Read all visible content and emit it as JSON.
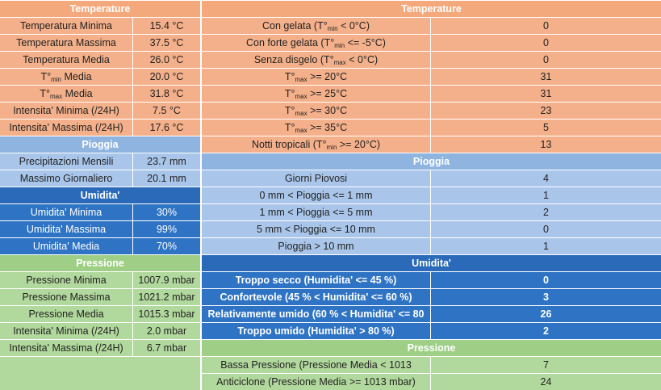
{
  "left": {
    "temperature": {
      "title": "Temperature",
      "rows": [
        {
          "label": "Temperatura Minima",
          "value": "15.4 °C"
        },
        {
          "label": "Temperatura Massima",
          "value": "37.5 °C"
        },
        {
          "label": "Temperatura Media",
          "value": "26.0 °C"
        },
        {
          "label_pre": "T°",
          "label_sub": "min",
          "label_post": " Media",
          "value": "20.0 °C"
        },
        {
          "label_pre": "T°",
          "label_sub": "max",
          "label_post": " Media",
          "value": "31.8 °C"
        },
        {
          "label": "Intensita' Minima (/24H)",
          "value": "7.5 °C"
        },
        {
          "label": "Intensita' Massima (/24H)",
          "value": "17.6 °C"
        }
      ]
    },
    "pioggia": {
      "title": "Pioggia",
      "rows": [
        {
          "label": "Precipitazioni Mensili",
          "value": "23.7 mm"
        },
        {
          "label": "Massimo Giornaliero",
          "value": "20.1 mm"
        }
      ]
    },
    "umidita": {
      "title": "Umidita'",
      "rows": [
        {
          "label": "Umidita' Minima",
          "value": "30%"
        },
        {
          "label": "Umidita' Massima",
          "value": "99%"
        },
        {
          "label": "Umidita' Media",
          "value": "70%"
        }
      ]
    },
    "pressione": {
      "title": "Pressione",
      "rows": [
        {
          "label": "Pressione Minima",
          "value": "1007.9 mbar"
        },
        {
          "label": "Pressione Massima",
          "value": "1021.2 mbar"
        },
        {
          "label": "Pressione Media",
          "value": "1015.3 mbar"
        },
        {
          "label": "Intensita' Minima (/24H)",
          "value": "2.0 mbar"
        },
        {
          "label": "Intensita' Massima (/24H)",
          "value": "6.7 mbar"
        }
      ]
    }
  },
  "right": {
    "temperature": {
      "title": "Temperature",
      "rows": [
        {
          "label_pre": "Con gelata (T°",
          "label_sub": "min",
          "label_post": " < 0°C)",
          "value": "0"
        },
        {
          "label_pre": "Con forte gelata (T°",
          "label_sub": "min",
          "label_post": " <= -5°C)",
          "value": "0"
        },
        {
          "label_pre": "Senza disgelo (T°",
          "label_sub": "max",
          "label_post": " < 0°C)",
          "value": "0"
        },
        {
          "label_pre": "T°",
          "label_sub": "max",
          "label_post": " >= 20°C",
          "value": "31"
        },
        {
          "label_pre": "T°",
          "label_sub": "max",
          "label_post": " >= 25°C",
          "value": "31"
        },
        {
          "label_pre": "T°",
          "label_sub": "max",
          "label_post": " >= 30°C",
          "value": "23"
        },
        {
          "label_pre": "T°",
          "label_sub": "max",
          "label_post": " >= 35°C",
          "value": "5"
        },
        {
          "label_pre": "Notti tropicali (T°",
          "label_sub": "min",
          "label_post": " >= 20°C)",
          "value": "13"
        }
      ]
    },
    "pioggia": {
      "title": "Pioggia",
      "rows": [
        {
          "label": "Giorni Piovosi",
          "value": "4"
        },
        {
          "label": "0 mm < Pioggia <= 1 mm",
          "value": "1"
        },
        {
          "label": "1 mm < Pioggia <= 5 mm",
          "value": "2"
        },
        {
          "label": "5 mm < Pioggia <= 10 mm",
          "value": "0"
        },
        {
          "label": "Pioggia > 10 mm",
          "value": "1"
        }
      ]
    },
    "umidita": {
      "title": "Umidita'",
      "rows": [
        {
          "label": "Troppo secco (Humidita' <= 45 %)",
          "value": "0"
        },
        {
          "label": "Confortevole (45 % < Humidita' <= 60 %)",
          "value": "3"
        },
        {
          "label": "Relativamente umido (60 % < Humidita' <= 80",
          "value": "26"
        },
        {
          "label": "Troppo umido (Humidita' > 80 %)",
          "value": "2"
        }
      ]
    },
    "pressione": {
      "title": "Pressione",
      "rows": [
        {
          "label": "Bassa Pressione (Pressione Media < 1013",
          "value": "7"
        },
        {
          "label": "Anticiclone (Pressione Media >= 1013 mbar)",
          "value": "24"
        }
      ]
    }
  }
}
